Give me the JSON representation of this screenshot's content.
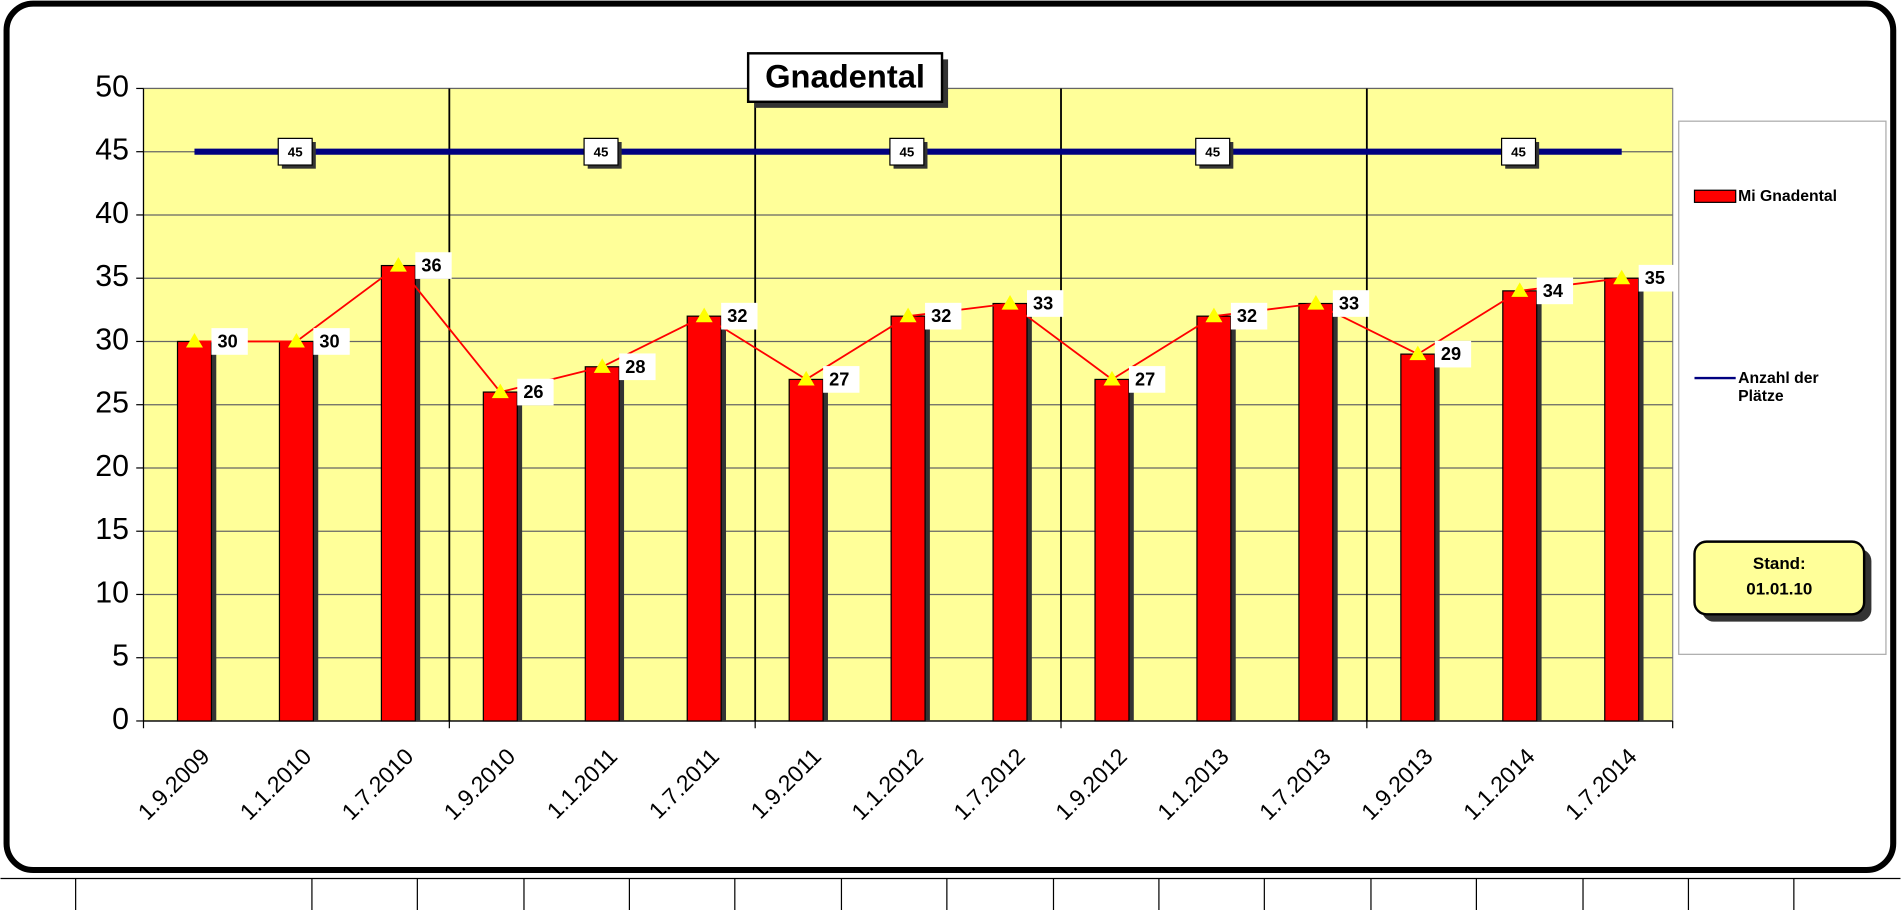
{
  "chart_data": {
    "type": "bar",
    "title": "Gnadental",
    "categories": [
      "1.9.2009",
      "1.1.2010",
      "1.7.2010",
      "1.9.2010",
      "1.1.2011",
      "1.7.2011",
      "1.9.2011",
      "1.1.2012",
      "1.7.2012",
      "1.9.2012",
      "1.1.2013",
      "1.7.2013",
      "1.9.2013",
      "1.1.2014",
      "1.7.2014"
    ],
    "series": [
      {
        "name": "Mi Gnadental",
        "type": "bar",
        "color": "#ff0000",
        "marker_color": "#ffff00",
        "values": [
          30,
          30,
          36,
          26,
          28,
          32,
          27,
          32,
          33,
          27,
          32,
          33,
          29,
          34,
          35
        ]
      },
      {
        "name": "Anzahl der Plätze",
        "type": "line",
        "color": "#000080",
        "values": [
          45,
          45,
          45,
          45,
          45,
          45,
          45,
          45,
          45,
          45,
          45,
          45,
          45,
          45,
          45
        ],
        "value_labels": [
          null,
          "45",
          null,
          null,
          "45",
          null,
          null,
          "45",
          null,
          null,
          "45",
          null,
          null,
          "45",
          null
        ]
      }
    ],
    "ylim": [
      0,
      50
    ],
    "yticks": [
      0,
      5,
      10,
      15,
      20,
      25,
      30,
      35,
      40,
      45,
      50
    ],
    "grid": true,
    "legend": "right",
    "annotation": [
      "Stand:",
      "01.01.10"
    ]
  }
}
